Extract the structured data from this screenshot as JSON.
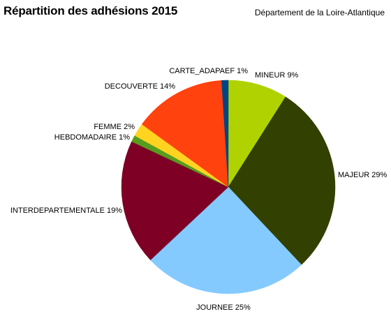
{
  "header": {
    "title": "Répartition des adhésions 2015",
    "subtitle": "Département de la Loire-Atlantique"
  },
  "chart_data": {
    "type": "pie",
    "title": "Répartition des adhésions 2015",
    "subtitle": "Département de la Loire-Atlantique",
    "legend": "none",
    "start_angle_deg": 0,
    "direction": "clockwise",
    "slices": [
      {
        "name": "MINEUR",
        "value": 9,
        "label": "MINEUR 9%",
        "color": "#b0d300"
      },
      {
        "name": "MAJEUR",
        "value": 29,
        "label": "MAJEUR 29%",
        "color": "#324002"
      },
      {
        "name": "JOURNEE",
        "value": 25,
        "label": "JOURNEE 25%",
        "color": "#84caff"
      },
      {
        "name": "INTERDEPARTEMENTALE",
        "value": 19,
        "label": "INTERDEPARTEMENTALE 19%",
        "color": "#7e0025"
      },
      {
        "name": "HEBDOMADAIRE",
        "value": 1,
        "label": "HEBDOMADAIRE 1%",
        "color": "#579c1d"
      },
      {
        "name": "FEMME",
        "value": 2,
        "label": "FEMME 2%",
        "color": "#ffd320"
      },
      {
        "name": "DECOUVERTE",
        "value": 14,
        "label": "DECOUVERTE 14%",
        "color": "#ff420e"
      },
      {
        "name": "CARTE_ADAPAEF",
        "value": 1,
        "label": "CARTE_ADAPAEF 1%",
        "color": "#004586"
      }
    ]
  }
}
